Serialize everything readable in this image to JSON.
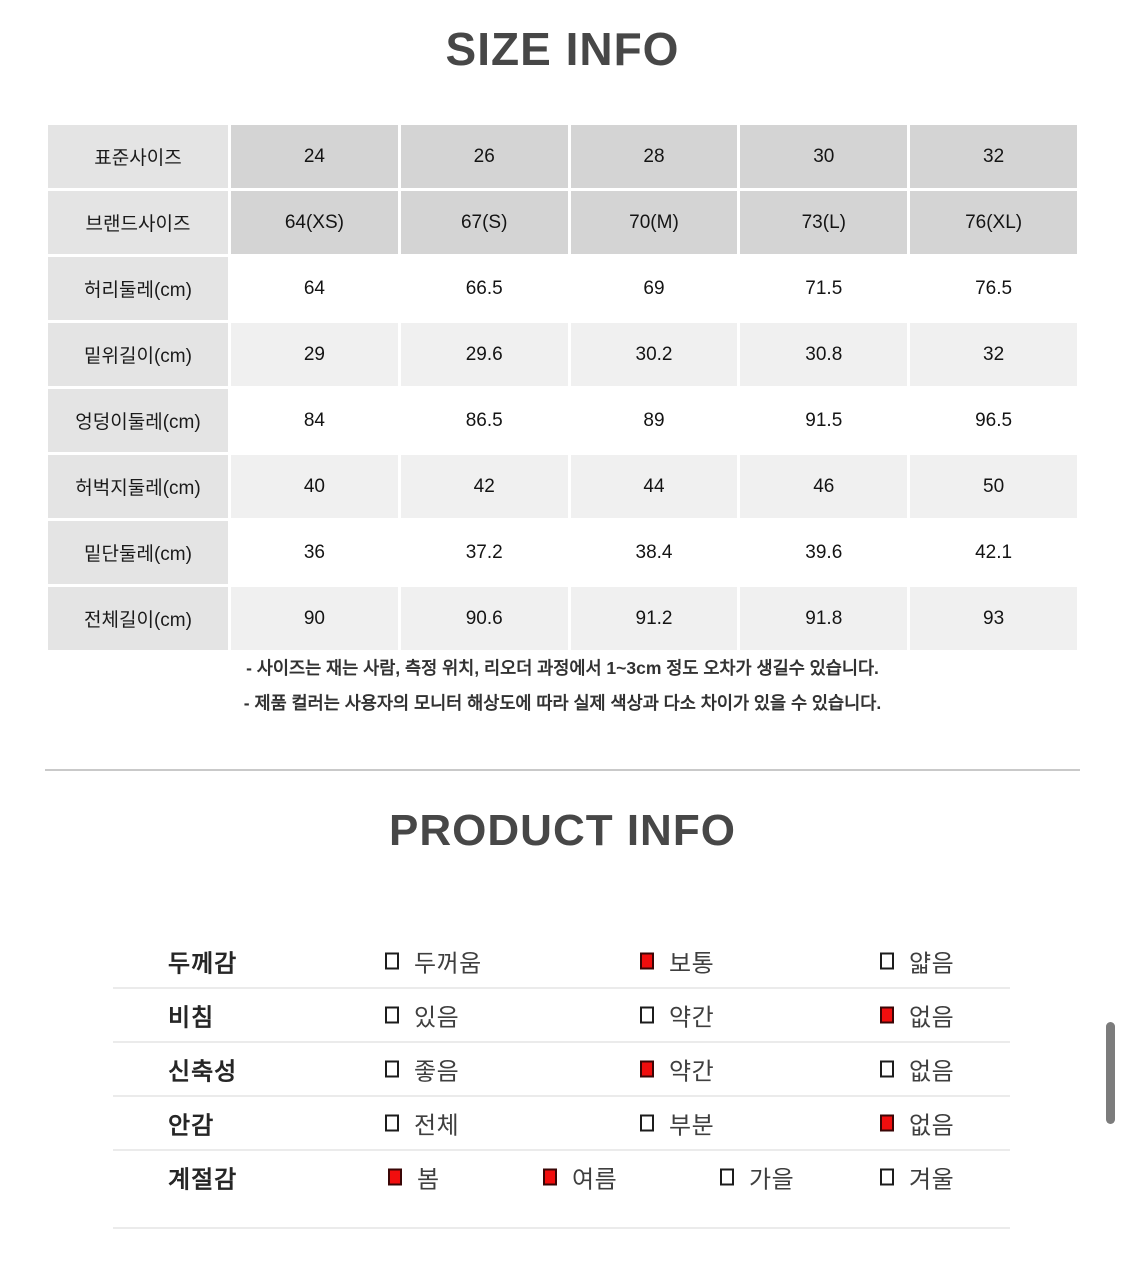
{
  "size_info": {
    "title": "SIZE INFO",
    "table": {
      "rows": [
        {
          "header": true,
          "label": "표준사이즈",
          "values": [
            "24",
            "26",
            "28",
            "30",
            "32"
          ]
        },
        {
          "header": true,
          "label": "브랜드사이즈",
          "values": [
            "64(XS)",
            "67(S)",
            "70(M)",
            "73(L)",
            "76(XL)"
          ]
        },
        {
          "header": false,
          "label": "허리둘레(cm)",
          "values": [
            "64",
            "66.5",
            "69",
            "71.5",
            "76.5"
          ]
        },
        {
          "header": false,
          "label": "밑위길이(cm)",
          "values": [
            "29",
            "29.6",
            "30.2",
            "30.8",
            "32"
          ]
        },
        {
          "header": false,
          "label": "엉덩이둘레(cm)",
          "values": [
            "84",
            "86.5",
            "89",
            "91.5",
            "96.5"
          ]
        },
        {
          "header": false,
          "label": "허벅지둘레(cm)",
          "values": [
            "40",
            "42",
            "44",
            "46",
            "50"
          ]
        },
        {
          "header": false,
          "label": "밑단둘레(cm)",
          "values": [
            "36",
            "37.2",
            "38.4",
            "39.6",
            "42.1"
          ]
        },
        {
          "header": false,
          "label": "전체길이(cm)",
          "values": [
            "90",
            "90.6",
            "91.2",
            "91.8",
            "93"
          ]
        }
      ]
    },
    "notes": [
      "- 사이즈는 재는 사람, 측정 위치, 리오더 과정에서 1~3cm 정도 오차가 생길수 있습니다.",
      "- 제품 컬러는 사용자의 모니터 해상도에 따라 실제 색상과 다소 차이가 있을 수 있습니다."
    ]
  },
  "product_info": {
    "title": "PRODUCT INFO",
    "rows": [
      {
        "label": "두께감",
        "options": [
          {
            "label": "두꺼움",
            "checked": false
          },
          {
            "label": "보통",
            "checked": true
          },
          {
            "label": "얇음",
            "checked": false
          }
        ]
      },
      {
        "label": "비침",
        "options": [
          {
            "label": "있음",
            "checked": false
          },
          {
            "label": "약간",
            "checked": false
          },
          {
            "label": "없음",
            "checked": true
          }
        ]
      },
      {
        "label": "신축성",
        "options": [
          {
            "label": "좋음",
            "checked": false
          },
          {
            "label": "약간",
            "checked": true
          },
          {
            "label": "없음",
            "checked": false
          }
        ]
      },
      {
        "label": "안감",
        "options": [
          {
            "label": "전체",
            "checked": false
          },
          {
            "label": "부분",
            "checked": false
          },
          {
            "label": "없음",
            "checked": true
          }
        ]
      },
      {
        "label": "계절감",
        "options": [
          {
            "label": "봄",
            "checked": true
          },
          {
            "label": "여름",
            "checked": true
          },
          {
            "label": "가을",
            "checked": false
          },
          {
            "label": "겨울",
            "checked": false
          }
        ]
      }
    ]
  },
  "colors": {
    "checkbox_checked": "#f10e0e",
    "table_label_bg": "#e4e4e4",
    "table_header_bg": "#d4d4d4",
    "table_zebra_bg": "#f0f0f0",
    "divider": "#c9c9c9",
    "title_text": "#474747"
  }
}
